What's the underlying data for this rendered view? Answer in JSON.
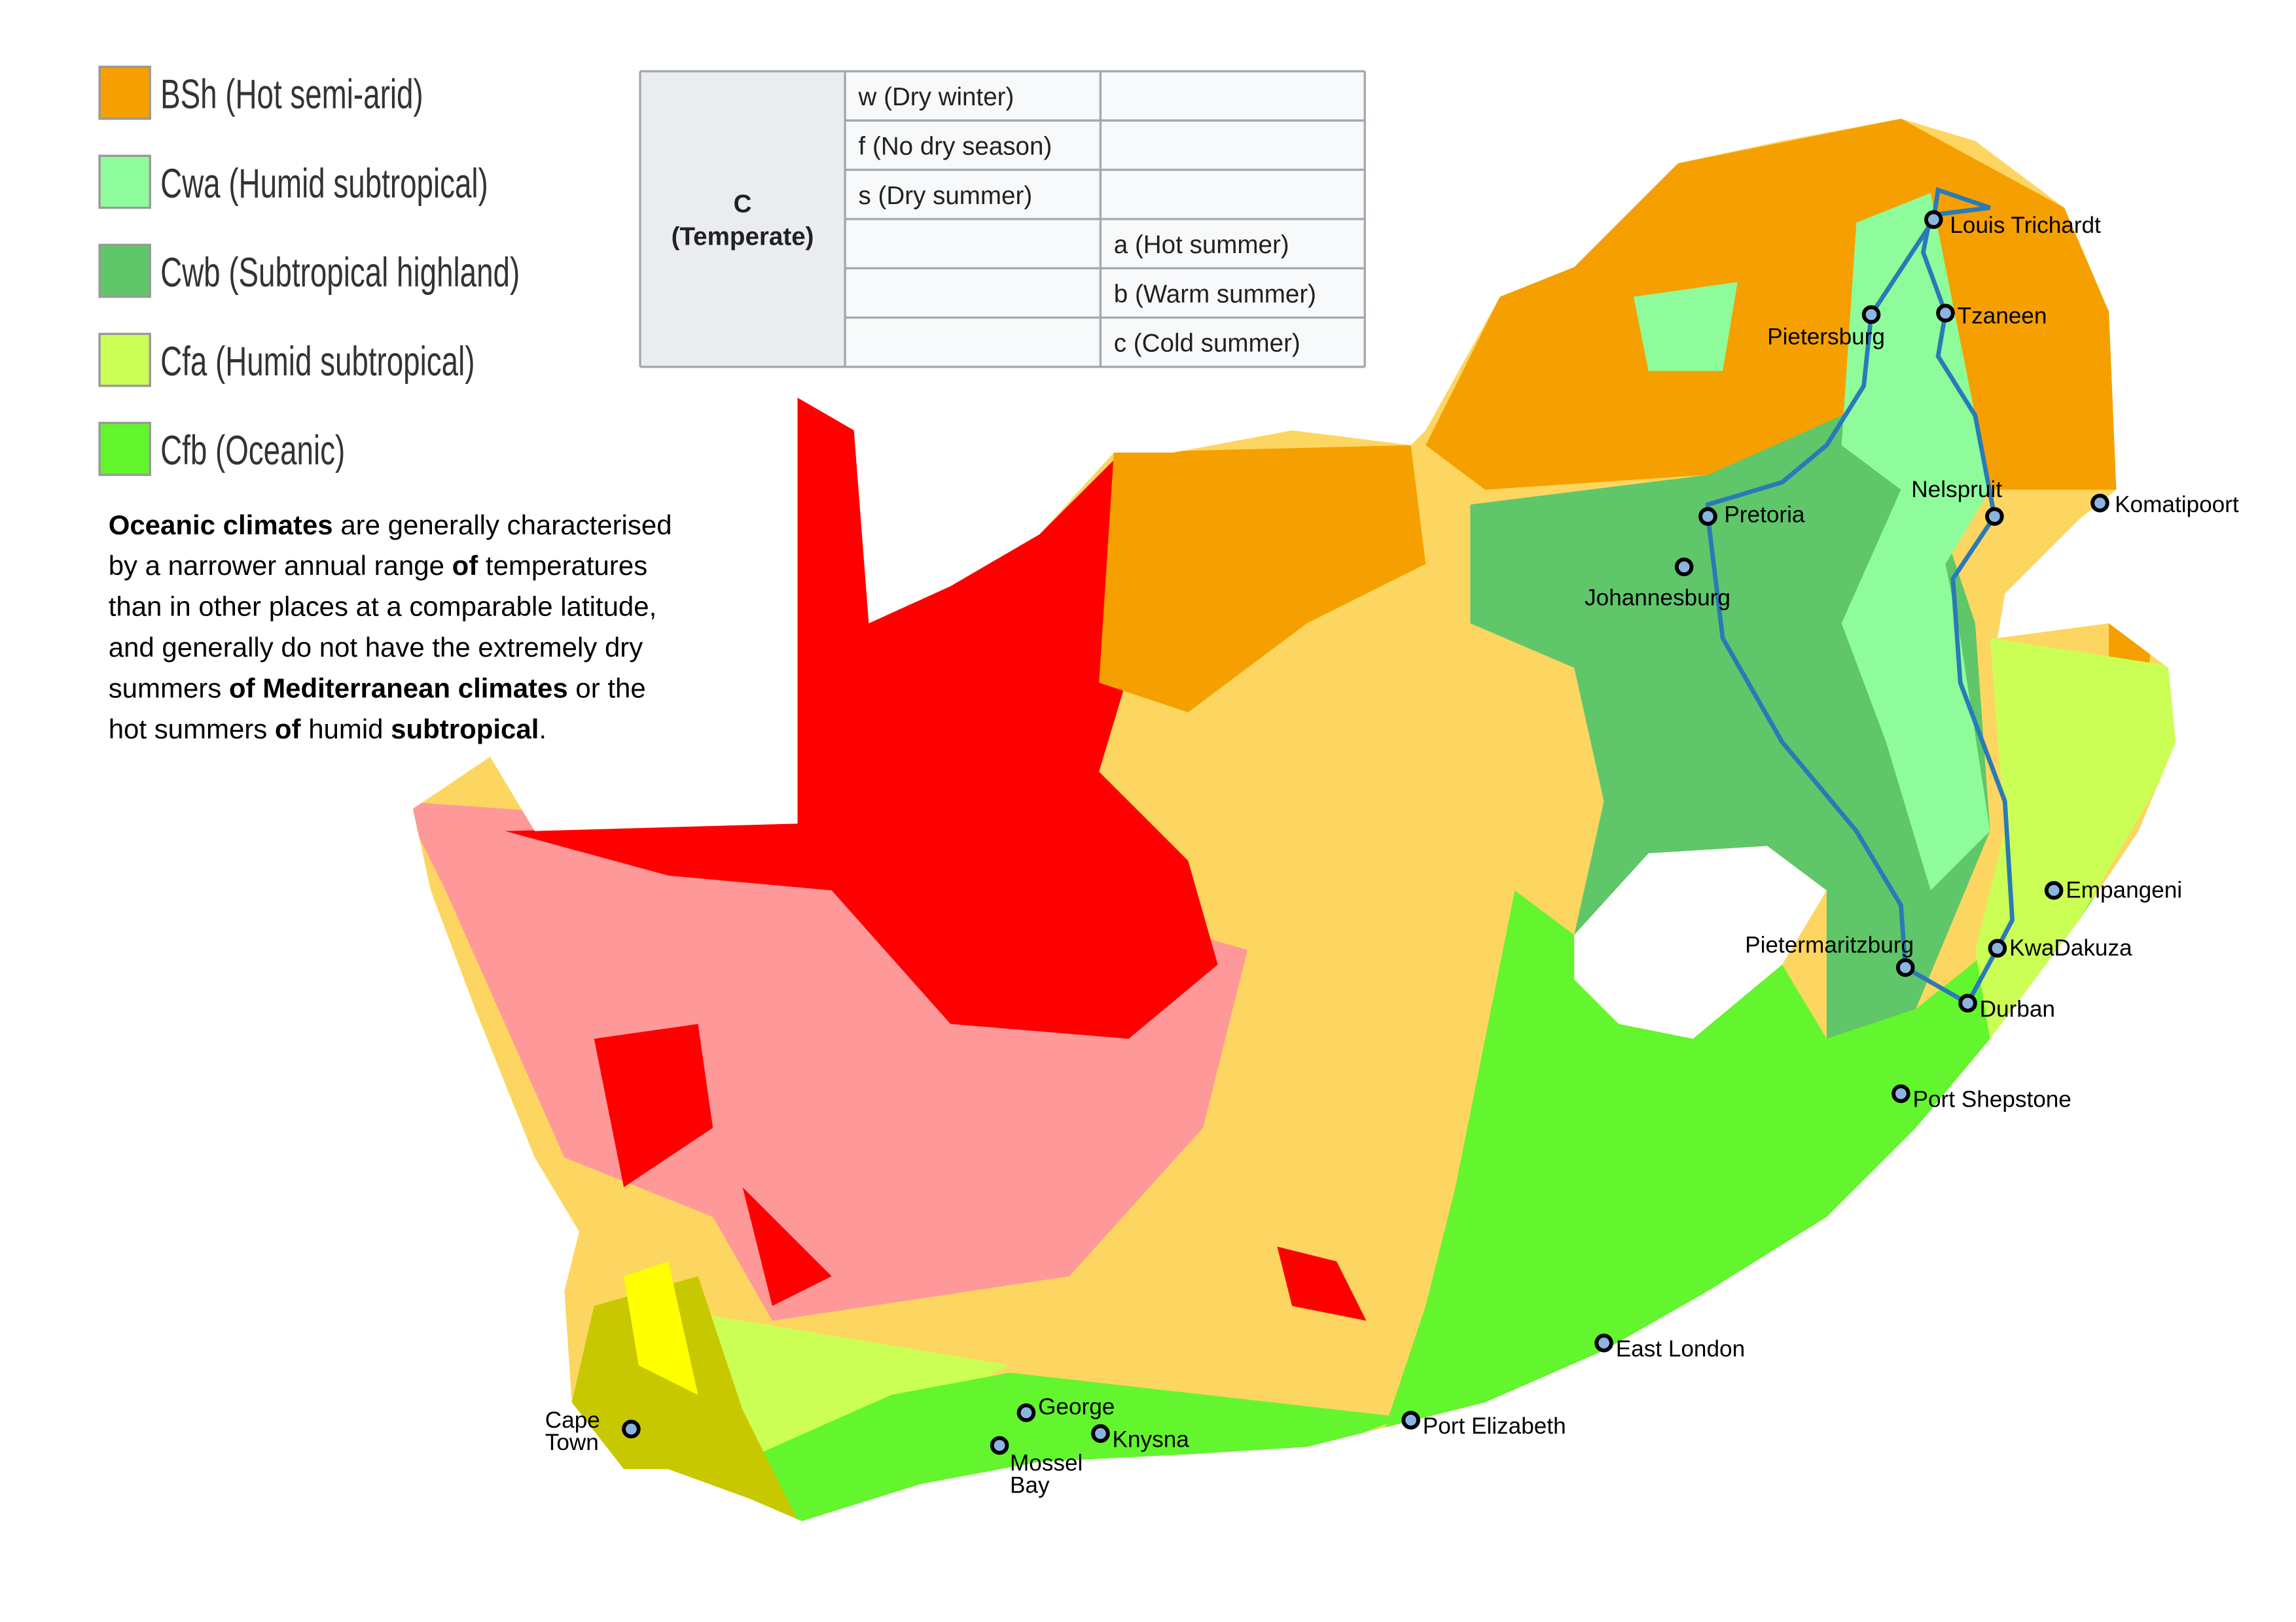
{
  "legend": [
    {
      "label": "BSh (Hot semi-arid)",
      "color": "#f5a000"
    },
    {
      "label": "Cwa (Humid subtropical)",
      "color": "#8efc9a"
    },
    {
      "label": "Cwb (Subtropical highland)",
      "color": "#5fc66a"
    },
    {
      "label": "Cfa (Humid subtropical)",
      "color": "#ccff55"
    },
    {
      "label": "Cfb (Oceanic)",
      "color": "#63f52e"
    }
  ],
  "table": {
    "group": [
      "C",
      "(Temperate)"
    ],
    "precipitation": [
      "w (Dry winter)",
      "f (No dry season)",
      "s (Dry summer)"
    ],
    "temperature": [
      "a (Hot summer)",
      "b (Warm summer)",
      "c (Cold summer)"
    ]
  },
  "paragraph": [
    [
      {
        "text": "Oceanic climates",
        "bold": true
      },
      {
        "text": " are generally characterised",
        "bold": false
      }
    ],
    [
      {
        "text": "by a narrower annual range ",
        "bold": false
      },
      {
        "text": "of",
        "bold": true
      },
      {
        "text": " temperatures",
        "bold": false
      }
    ],
    [
      {
        "text": "than in other places at a comparable latitude,",
        "bold": false
      }
    ],
    [
      {
        "text": "and generally do not have the extremely dry",
        "bold": false
      }
    ],
    [
      {
        "text": "summers ",
        "bold": false
      },
      {
        "text": "of Mediterranean climates",
        "bold": true
      },
      {
        "text": " or the",
        "bold": false
      }
    ],
    [
      {
        "text": "hot summers ",
        "bold": false
      },
      {
        "text": "of",
        "bold": true
      },
      {
        "text": " humid ",
        "bold": false
      },
      {
        "text": "subtropical",
        "bold": true
      },
      {
        "text": ".",
        "bold": false
      }
    ]
  ],
  "cities": [
    {
      "name": [
        "Louis Trichardt"
      ]
    },
    {
      "name": [
        "Tzaneen"
      ]
    },
    {
      "name": [
        "Pietersburg"
      ]
    },
    {
      "name": [
        "Pretoria"
      ]
    },
    {
      "name": [
        "Johannesburg"
      ]
    },
    {
      "name": [
        "Nelspruit"
      ]
    },
    {
      "name": [
        "Komatipoort"
      ]
    },
    {
      "name": [
        "Empangeni"
      ]
    },
    {
      "name": [
        "KwaDakuza"
      ]
    },
    {
      "name": [
        "Pietermaritzburg"
      ]
    },
    {
      "name": [
        "Durban"
      ]
    },
    {
      "name": [
        "Port Shepstone"
      ]
    },
    {
      "name": [
        "East London"
      ]
    },
    {
      "name": [
        "Port Elizabeth"
      ]
    },
    {
      "name": [
        "Knysna"
      ]
    },
    {
      "name": [
        "George"
      ]
    },
    {
      "name": [
        "Mossel",
        "Bay"
      ]
    },
    {
      "name": [
        "Cape",
        "Town"
      ]
    }
  ]
}
